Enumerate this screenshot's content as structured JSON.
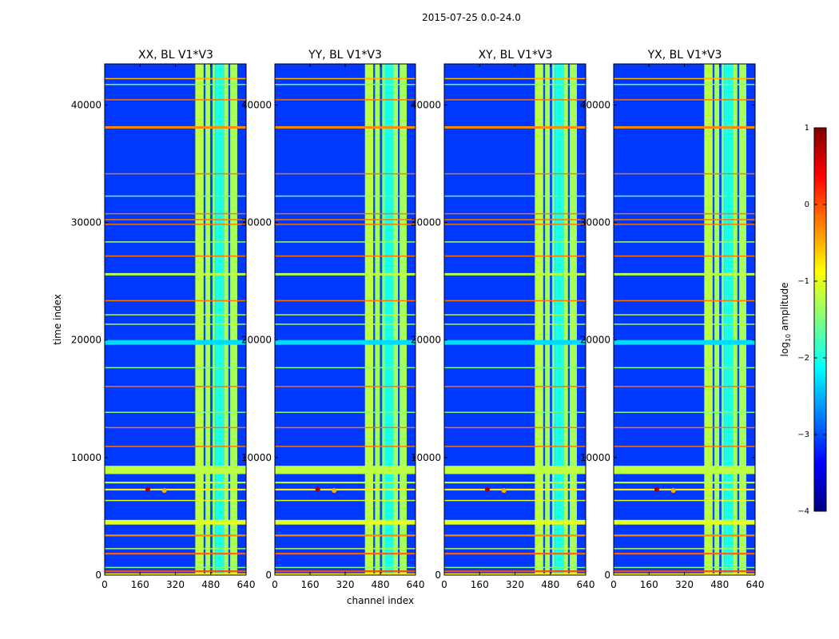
{
  "figure": {
    "suptitle": "2015-07-25 0.0-24.0",
    "xlabel": "channel index",
    "ylabel": "time index"
  },
  "chart_data": {
    "type": "heatmap",
    "x_range": [
      0,
      640
    ],
    "y_range": [
      0,
      43500
    ],
    "x_ticks": [
      0,
      160,
      320,
      480,
      640
    ],
    "y_ticks": [
      0,
      10000,
      20000,
      30000,
      40000
    ],
    "panels": [
      {
        "title": "XX, BL V1*V3"
      },
      {
        "title": "YY, BL V1*V3"
      },
      {
        "title": "XY, BL V1*V3"
      },
      {
        "title": "YX, BL V1*V3"
      }
    ],
    "colorbar": {
      "label": "log",
      "label_sub": "10",
      "label_rest": " amplitude",
      "range": [
        -4,
        1
      ],
      "ticks": [
        1,
        0,
        -1,
        -2,
        -3,
        -4
      ],
      "tick_labels": [
        "1",
        "0",
        "−1",
        "−2",
        "−3",
        "−4"
      ],
      "colormap": "jet"
    },
    "background_level": -3.1,
    "channel_bands": [
      {
        "x0": 410,
        "x1": 448,
        "level": -1.2
      },
      {
        "x0": 448,
        "x1": 456,
        "level": -3.0
      },
      {
        "x0": 456,
        "x1": 478,
        "level": -1.3
      },
      {
        "x0": 478,
        "x1": 488,
        "level": -3.0
      },
      {
        "x0": 488,
        "x1": 500,
        "level": -1.5
      },
      {
        "x0": 500,
        "x1": 540,
        "level": -2.0
      },
      {
        "x0": 540,
        "x1": 560,
        "level": -1.3
      },
      {
        "x0": 560,
        "x1": 568,
        "level": -3.0
      },
      {
        "x0": 568,
        "x1": 600,
        "level": -1.3
      }
    ],
    "time_bands": [
      {
        "y0": 0,
        "y1": 150,
        "level": -0.8
      },
      {
        "y0": 250,
        "y1": 400,
        "level": 0.0
      },
      {
        "y0": 600,
        "y1": 700,
        "level": -1.5
      },
      {
        "y0": 1750,
        "y1": 1900,
        "level": -0.1
      },
      {
        "y0": 2200,
        "y1": 2300,
        "level": -1.2
      },
      {
        "y0": 3300,
        "y1": 3450,
        "level": -0.3
      },
      {
        "y0": 4300,
        "y1": 4700,
        "level": -1.0
      },
      {
        "y0": 6300,
        "y1": 6400,
        "level": -1.0
      },
      {
        "y0": 7200,
        "y1": 7350,
        "level": -0.8
      },
      {
        "y0": 7800,
        "y1": 7950,
        "level": -1.2
      },
      {
        "y0": 8600,
        "y1": 9300,
        "level": -1.2
      },
      {
        "y0": 10900,
        "y1": 11000,
        "level": -0.2
      },
      {
        "y0": 12500,
        "y1": 12600,
        "level": -0.2
      },
      {
        "y0": 13800,
        "y1": 13900,
        "level": -1.5
      },
      {
        "y0": 16000,
        "y1": 16100,
        "level": -0.2
      },
      {
        "y0": 17600,
        "y1": 17700,
        "level": -1.5
      },
      {
        "y0": 19600,
        "y1": 20000,
        "level": -2.3
      },
      {
        "y0": 21300,
        "y1": 21400,
        "level": -1.2
      },
      {
        "y0": 22100,
        "y1": 22200,
        "level": -1.2
      },
      {
        "y0": 23300,
        "y1": 23400,
        "level": -0.2
      },
      {
        "y0": 25500,
        "y1": 25700,
        "level": -1.2
      },
      {
        "y0": 27100,
        "y1": 27200,
        "level": -0.2
      },
      {
        "y0": 28300,
        "y1": 28400,
        "level": -1.3
      },
      {
        "y0": 29800,
        "y1": 29900,
        "level": -0.2
      },
      {
        "y0": 30200,
        "y1": 30300,
        "level": -0.2
      },
      {
        "y0": 30700,
        "y1": 30800,
        "level": -0.2
      },
      {
        "y0": 32200,
        "y1": 32300,
        "level": -1.5
      },
      {
        "y0": 34100,
        "y1": 34200,
        "level": -0.2
      },
      {
        "y0": 38000,
        "y1": 38200,
        "level": -0.3
      },
      {
        "y0": 40400,
        "y1": 40500,
        "level": -0.2
      },
      {
        "y0": 41700,
        "y1": 41800,
        "level": -1.5
      },
      {
        "y0": 42200,
        "y1": 42300,
        "level": -0.5
      }
    ],
    "hotspots": [
      {
        "x": 195,
        "y": 7300,
        "level": 0.8
      },
      {
        "x": 270,
        "y": 7200,
        "level": -0.5
      }
    ]
  }
}
